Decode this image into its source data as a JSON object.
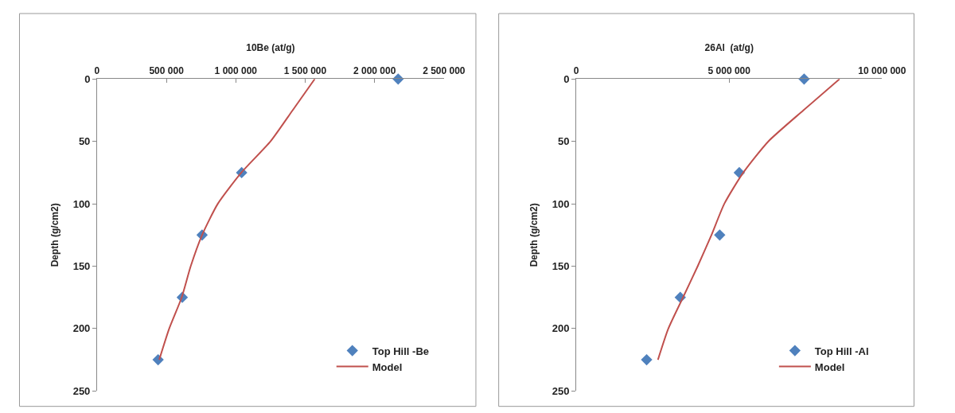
{
  "chart_data": [
    {
      "type": "scatter",
      "xlabel": "10Be (at/g)",
      "ylabel": "Depth (g/cm2)",
      "xlim": [
        0,
        2500000
      ],
      "xticks": [
        0,
        {
          "value": 500000,
          "label": "500 000"
        },
        {
          "value": 1000000,
          "label": "1 000 000"
        },
        {
          "value": 1500000,
          "label": "1 500 000"
        },
        {
          "value": 2000000,
          "label": "2 000 000"
        },
        {
          "value": 2500000,
          "label": "2 500 000"
        }
      ],
      "ylim": [
        250,
        0
      ],
      "yticks": [
        0,
        50,
        100,
        150,
        200,
        250
      ],
      "grid": false,
      "legend": "bottom right",
      "series": [
        {
          "name": "Top Hill -Be",
          "marker": "diamond",
          "color": "#4f81bd",
          "x": [
            2170000,
            1042000,
            757000,
            614000,
            440000
          ],
          "values": [
            0,
            75,
            125,
            175,
            225
          ]
        },
        {
          "name": "Model",
          "type": "line",
          "marker": "none",
          "line_style": "solid",
          "color": "#c0504d",
          "x": [
            1569000,
            1410000,
            1250000,
            1040000,
            870000,
            757000,
            675000,
            610000,
            520000,
            448000
          ],
          "values": [
            0,
            25,
            50,
            75,
            100,
            125,
            150,
            175,
            200,
            225
          ]
        }
      ]
    },
    {
      "type": "scatter",
      "xlabel": "26Al  (at/g)",
      "ylabel": "Depth (g/cm2)",
      "xlim": [
        0,
        10000000
      ],
      "xticks": [
        0,
        {
          "value": 5000000,
          "label": "5 000 000"
        },
        {
          "value": 10000000,
          "label": "10 000 000"
        }
      ],
      "ylim": [
        250,
        0
      ],
      "yticks": [
        0,
        50,
        100,
        150,
        200,
        250
      ],
      "grid": false,
      "legend": "bottom right",
      "series": [
        {
          "name": "Top Hill -Al",
          "marker": "diamond",
          "color": "#4f81bd",
          "x": [
            7450000,
            5330000,
            4690000,
            3400000,
            2300000
          ],
          "values": [
            0,
            75,
            125,
            175,
            225
          ]
        },
        {
          "name": "Model",
          "type": "line",
          "marker": "none",
          "line_style": "solid",
          "color": "#c0504d",
          "x": [
            8610000,
            7430000,
            6280000,
            5460000,
            4840000,
            4420000,
            3970000,
            3490000,
            3010000,
            2670000
          ],
          "values": [
            0,
            25,
            50,
            75,
            100,
            125,
            150,
            175,
            200,
            225
          ]
        }
      ]
    }
  ]
}
